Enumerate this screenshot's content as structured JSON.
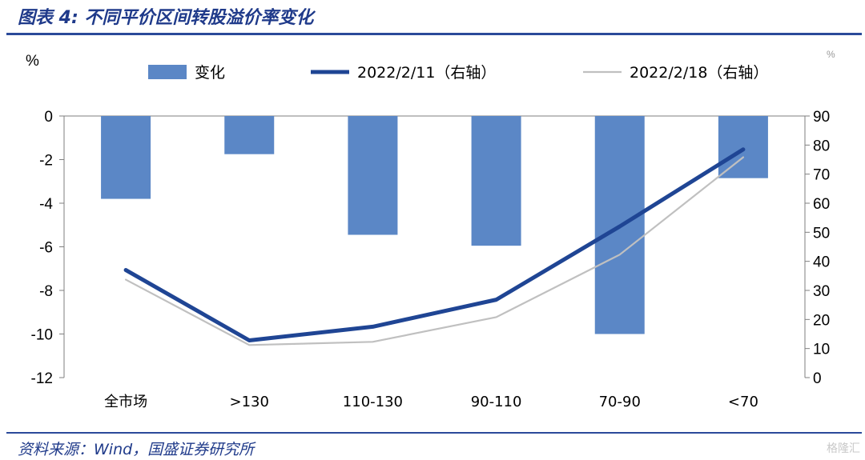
{
  "header": {
    "title": "图表 4:  不同平价区间转股溢价率变化"
  },
  "footer": {
    "source": "资料来源：Wind，国盛证券研究所",
    "watermark": "格隆汇"
  },
  "chart_data": {
    "type": "bar+line",
    "categories": [
      "全市场",
      ">130",
      "110-130",
      "90-110",
      "70-90",
      "<70"
    ],
    "left_axis": {
      "label": "%",
      "ylim": [
        -12,
        0
      ],
      "ticks": [
        0,
        -2,
        -4,
        -6,
        -8,
        -10,
        -12
      ]
    },
    "right_axis": {
      "label": "%",
      "ylim": [
        0,
        90
      ],
      "ticks": [
        90,
        80,
        70,
        60,
        50,
        40,
        30,
        20,
        10,
        0
      ]
    },
    "series": [
      {
        "name": "变化",
        "kind": "bar",
        "axis": "left",
        "color": "#5b87c6",
        "values": [
          -3.8,
          -1.75,
          -5.45,
          -5.95,
          -10.0,
          -2.85
        ]
      },
      {
        "name": "2022/2/11（右轴）",
        "kind": "line",
        "axis": "right",
        "color": "#1f4594",
        "values": [
          37,
          12.8,
          17.5,
          26.8,
          52.0,
          78.5
        ]
      },
      {
        "name": "2022/2/18（右轴）",
        "kind": "line",
        "axis": "right",
        "color": "#c0c0c0",
        "values": [
          33.7,
          11.2,
          12.3,
          20.8,
          42.3,
          75.8
        ]
      }
    ],
    "grid": false,
    "legend_position": "top"
  }
}
